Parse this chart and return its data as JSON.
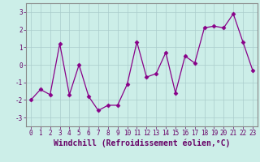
{
  "x": [
    0,
    1,
    2,
    3,
    4,
    5,
    6,
    7,
    8,
    9,
    10,
    11,
    12,
    13,
    14,
    15,
    16,
    17,
    18,
    19,
    20,
    21,
    22,
    23
  ],
  "y": [
    -2.0,
    -1.4,
    -1.7,
    1.2,
    -1.7,
    0.0,
    -1.8,
    -2.6,
    -2.3,
    -2.3,
    -1.1,
    1.3,
    -0.7,
    -0.5,
    0.7,
    -1.6,
    0.5,
    0.1,
    2.1,
    2.2,
    2.1,
    2.9,
    1.3,
    -0.3
  ],
  "line_color": "#880088",
  "marker": "D",
  "markersize": 2.5,
  "linewidth": 0.9,
  "xlabel": "Windchill (Refroidissement éolien,°C)",
  "xlabel_fontsize": 7,
  "xlim": [
    -0.5,
    23.5
  ],
  "ylim": [
    -3.5,
    3.5
  ],
  "yticks": [
    -3,
    -2,
    -1,
    0,
    1,
    2,
    3
  ],
  "xticks": [
    0,
    1,
    2,
    3,
    4,
    5,
    6,
    7,
    8,
    9,
    10,
    11,
    12,
    13,
    14,
    15,
    16,
    17,
    18,
    19,
    20,
    21,
    22,
    23
  ],
  "tick_fontsize": 5.5,
  "bg_color": "#cceee8",
  "grid_color": "#aacccc",
  "spine_color": "#888888",
  "label_color": "#660066"
}
